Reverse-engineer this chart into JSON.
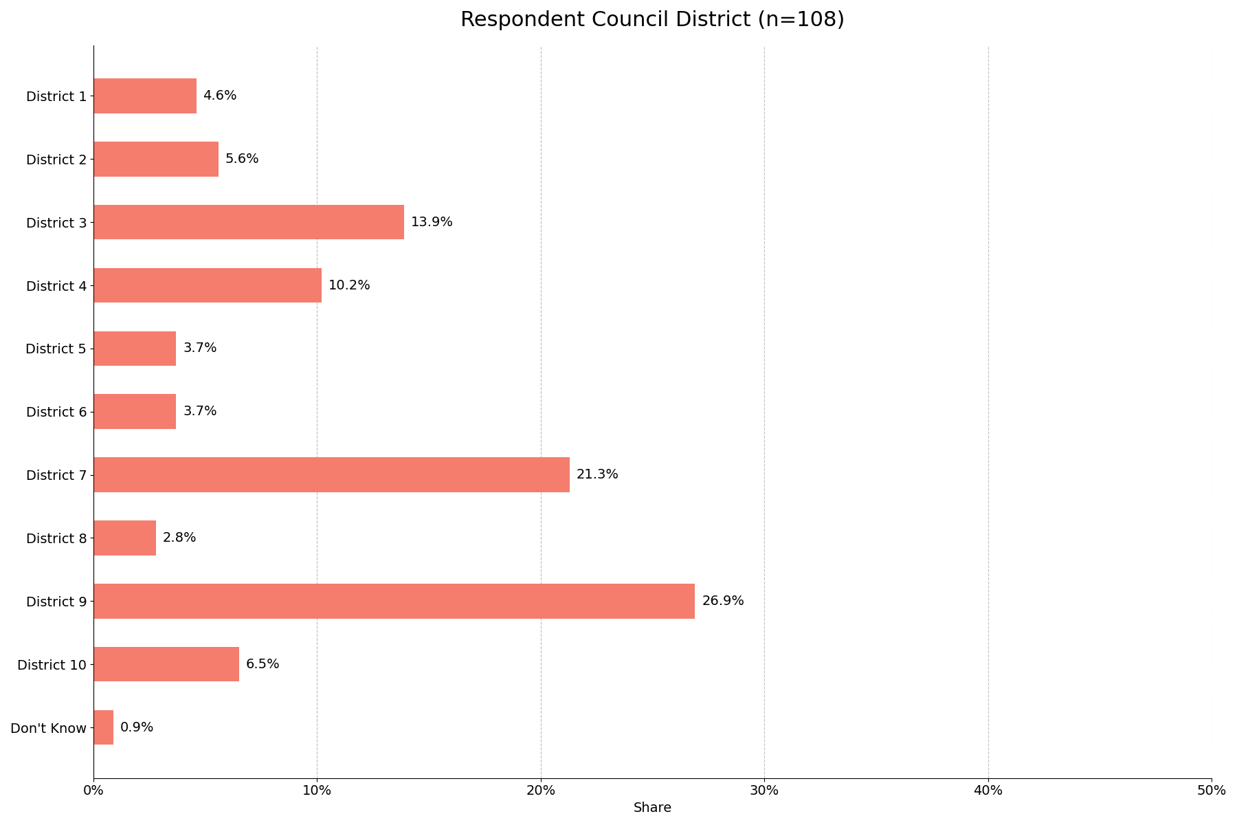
{
  "title": "Respondent Council District (n=108)",
  "categories": [
    "District 1",
    "District 2",
    "District 3",
    "District 4",
    "District 5",
    "District 6",
    "District 7",
    "District 8",
    "District 9",
    "District 10",
    "Don't Know"
  ],
  "values": [
    4.6,
    5.6,
    13.9,
    10.2,
    3.7,
    3.7,
    21.3,
    2.8,
    26.9,
    6.5,
    0.9
  ],
  "labels": [
    "4.6%",
    "5.6%",
    "13.9%",
    "10.2%",
    "3.7%",
    "3.7%",
    "21.3%",
    "2.8%",
    "26.9%",
    "6.5%",
    "0.9%"
  ],
  "bar_color": "#F47D6E",
  "xlabel": "Share",
  "xlim": [
    0,
    50
  ],
  "xticks": [
    0,
    10,
    20,
    30,
    40,
    50
  ],
  "xticklabels": [
    "0%",
    "10%",
    "20%",
    "30%",
    "40%",
    "50%"
  ],
  "background_color": "#ffffff",
  "title_fontsize": 22,
  "label_fontsize": 14,
  "tick_fontsize": 14,
  "xlabel_fontsize": 14,
  "bar_height": 0.55
}
